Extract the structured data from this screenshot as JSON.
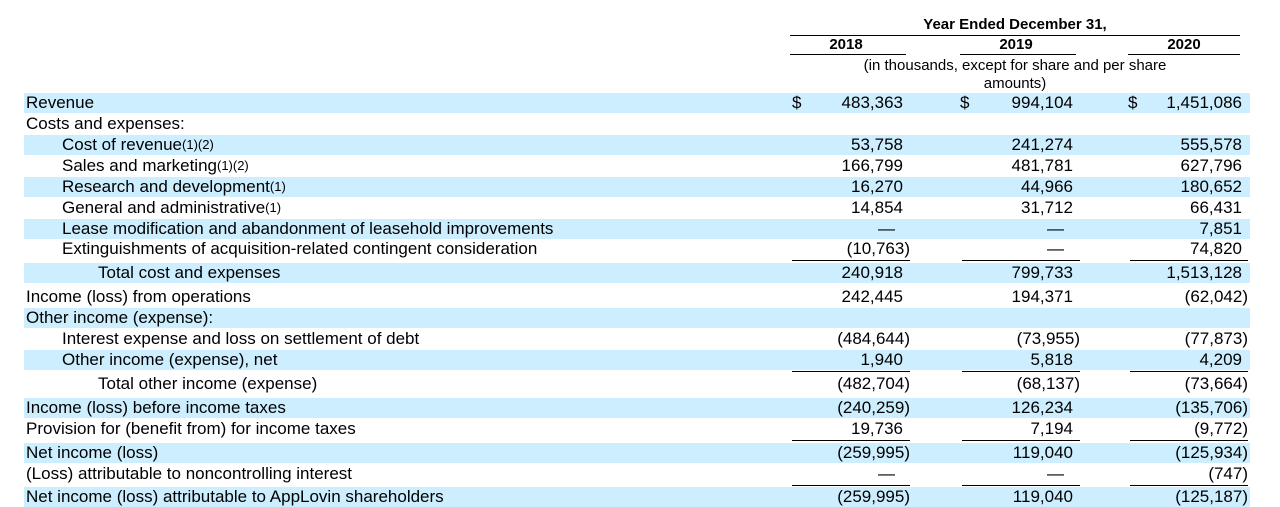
{
  "header": {
    "period_title": "Year Ended December 31,",
    "years": [
      "2018",
      "2019",
      "2020"
    ],
    "units_note_line1": "(in thousands, except for share and per share",
    "units_note_line2": "amounts)"
  },
  "currency_symbol": "$",
  "rows": [
    {
      "label": "Revenue",
      "note": "",
      "values": [
        "483,363",
        "994,104",
        "1,451,086"
      ]
    },
    {
      "label": "Costs and expenses:",
      "note": "",
      "values": [
        "",
        "",
        ""
      ]
    },
    {
      "label": "Cost of revenue",
      "note": "(1)(2)",
      "values": [
        "53,758",
        "241,274",
        "555,578"
      ]
    },
    {
      "label": "Sales and marketing",
      "note": "(1)(2)",
      "values": [
        "166,799",
        "481,781",
        "627,796"
      ]
    },
    {
      "label": "Research and development",
      "note": "(1)",
      "values": [
        "16,270",
        "44,966",
        "180,652"
      ]
    },
    {
      "label": "General and administrative",
      "note": "(1)",
      "values": [
        "14,854",
        "31,712",
        "66,431"
      ]
    },
    {
      "label": "Lease modification and abandonment of leasehold improvements",
      "note": "",
      "values": [
        "—",
        "—",
        "7,851"
      ]
    },
    {
      "label": "Extinguishments of acquisition-related contingent consideration",
      "note": "",
      "values": [
        "(10,763)",
        "—",
        "74,820"
      ]
    },
    {
      "label": "Total cost and expenses",
      "note": "",
      "values": [
        "240,918",
        "799,733",
        "1,513,128"
      ]
    },
    {
      "label": "Income (loss) from operations",
      "note": "",
      "values": [
        "242,445",
        "194,371",
        "(62,042)"
      ]
    },
    {
      "label": "Other income (expense):",
      "note": "",
      "values": [
        "",
        "",
        ""
      ]
    },
    {
      "label": "Interest expense and loss on settlement of debt",
      "note": "",
      "values": [
        "(484,644)",
        "(73,955)",
        "(77,873)"
      ]
    },
    {
      "label": "Other income (expense), net",
      "note": "",
      "values": [
        "1,940",
        "5,818",
        "4,209"
      ]
    },
    {
      "label": "Total other income (expense)",
      "note": "",
      "values": [
        "(482,704)",
        "(68,137)",
        "(73,664)"
      ]
    },
    {
      "label": "Income (loss) before income taxes",
      "note": "",
      "values": [
        "(240,259)",
        "126,234",
        "(135,706)"
      ]
    },
    {
      "label": "Provision for (benefit from) for income taxes",
      "note": "",
      "values": [
        "19,736",
        "7,194",
        "(9,772)"
      ]
    },
    {
      "label": "Net income (loss)",
      "note": "",
      "values": [
        "(259,995)",
        "119,040",
        "(125,934)"
      ]
    },
    {
      "label": "(Loss) attributable to noncontrolling interest",
      "note": "",
      "values": [
        "—",
        "—",
        "(747)"
      ]
    },
    {
      "label": "Net income (loss) attributable to AppLovin shareholders",
      "note": "",
      "values": [
        "(259,995)",
        "119,040",
        "(125,187)"
      ]
    }
  ]
}
